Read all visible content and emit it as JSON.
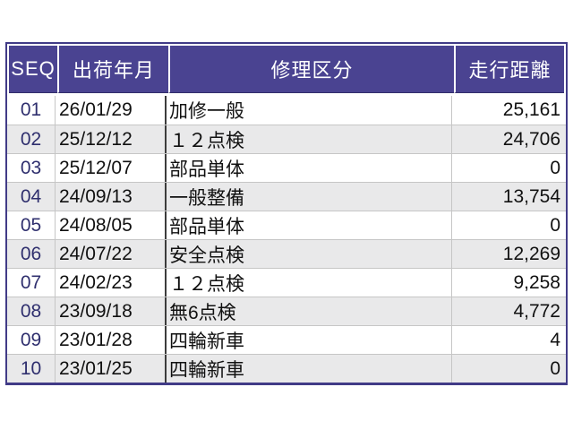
{
  "table": {
    "columns": [
      {
        "label": "SEQ"
      },
      {
        "label": "出荷年月"
      },
      {
        "label": "修理区分"
      },
      {
        "label": "走行距離"
      }
    ],
    "rows": [
      {
        "seq": "01",
        "date": "26/01/29",
        "category": "加修一般",
        "mileage": "25,161"
      },
      {
        "seq": "02",
        "date": "25/12/12",
        "category": "１２点検",
        "mileage": "24,706"
      },
      {
        "seq": "03",
        "date": "25/12/07",
        "category": "部品単体",
        "mileage": "0"
      },
      {
        "seq": "04",
        "date": "24/09/13",
        "category": "一般整備",
        "mileage": "13,754"
      },
      {
        "seq": "05",
        "date": "24/08/05",
        "category": "部品単体",
        "mileage": "0"
      },
      {
        "seq": "06",
        "date": "24/07/22",
        "category": "安全点検",
        "mileage": "12,269"
      },
      {
        "seq": "07",
        "date": "24/02/23",
        "category": "１２点検",
        "mileage": "9,258"
      },
      {
        "seq": "08",
        "date": "23/09/18",
        "category": "無6点検",
        "mileage": "4,772"
      },
      {
        "seq": "09",
        "date": "23/01/28",
        "category": "四輪新車",
        "mileage": "4"
      },
      {
        "seq": "10",
        "date": "23/01/25",
        "category": "四輪新車",
        "mileage": "0"
      }
    ],
    "colors": {
      "header_bg": "#4a4391",
      "header_text": "#ffffff",
      "frame_border": "#413b87",
      "alt_row_bg": "#e9e9ea",
      "seq_text": "#2f2f6e",
      "dark_separator": "#3c3c3c",
      "light_separator": "#c6c6c6"
    }
  }
}
